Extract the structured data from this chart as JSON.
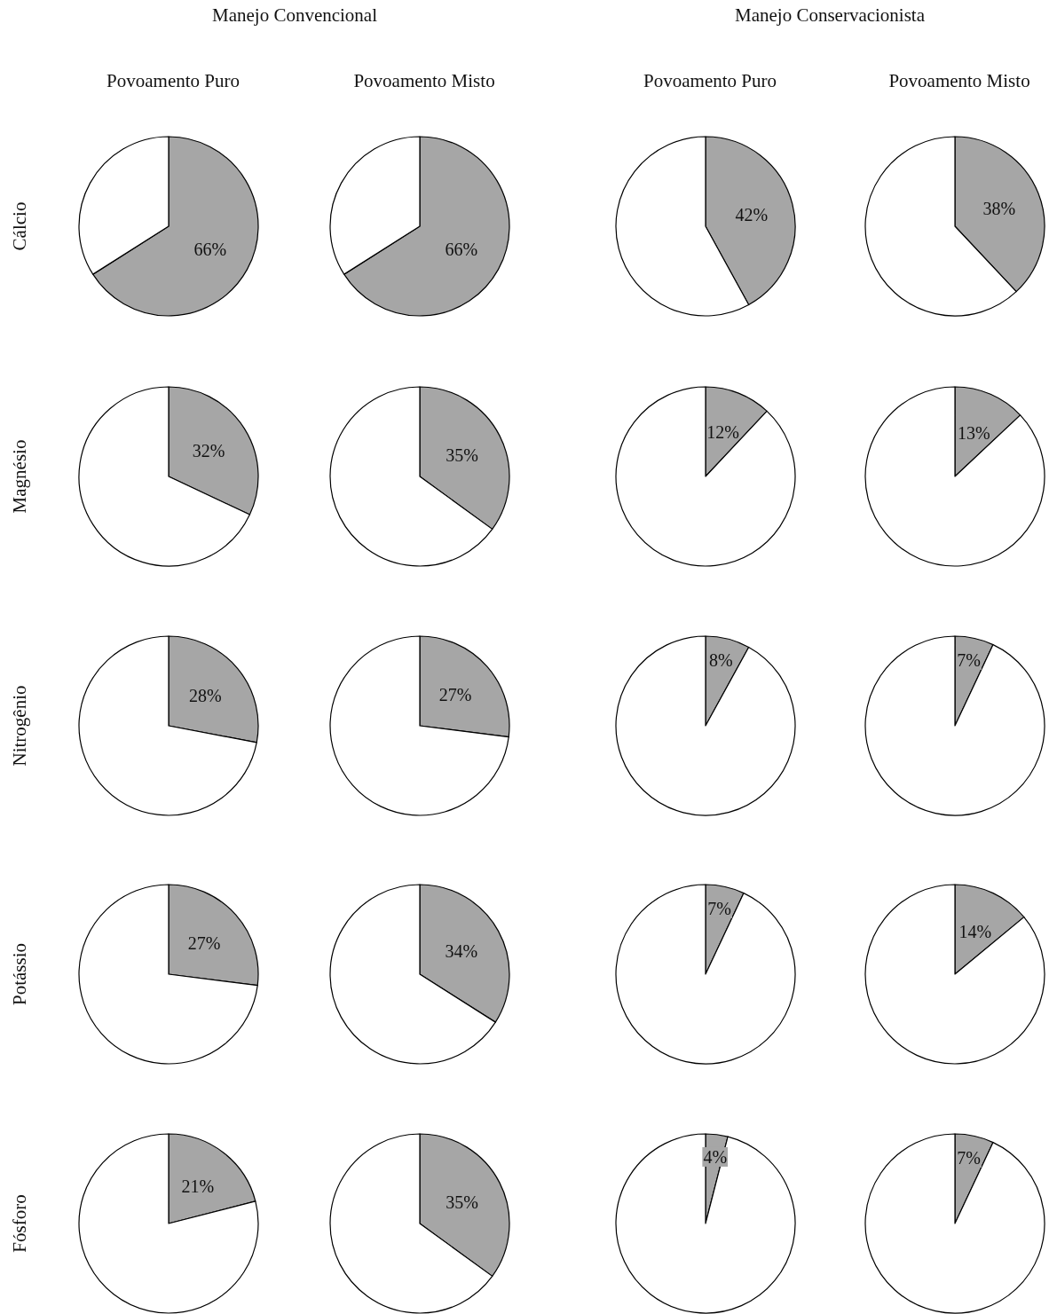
{
  "chart_data": [
    {
      "type": "other",
      "annotations": [
        "Manejo Convencional",
        "Manejo Conservacionista"
      ]
    },
    {
      "type": "pie",
      "title": "Povoamento Puro",
      "ylabel": "Cálcio",
      "categories": [
        null,
        null
      ],
      "values": [
        66,
        34
      ],
      "colors": [
        "#a6a6a6",
        "#ffffff"
      ],
      "value_labels": [
        "66%",
        null
      ]
    },
    {
      "type": "pie",
      "title": "Povoamento Misto",
      "categories": [
        null,
        null
      ],
      "values": [
        66,
        34
      ],
      "colors": [
        "#a6a6a6",
        "#ffffff"
      ],
      "value_labels": [
        "66%",
        null
      ]
    },
    {
      "type": "pie",
      "title": "Povoamento Puro",
      "categories": [
        null,
        null
      ],
      "values": [
        42,
        58
      ],
      "colors": [
        "#a6a6a6",
        "#ffffff"
      ],
      "value_labels": [
        "42%",
        null
      ]
    },
    {
      "type": "pie",
      "title": "Povoamento Misto",
      "categories": [
        null,
        null
      ],
      "values": [
        38,
        62
      ],
      "colors": [
        "#a6a6a6",
        "#ffffff"
      ],
      "value_labels": [
        "38%",
        null
      ]
    },
    {
      "type": "pie",
      "ylabel": "Magnésio",
      "categories": [
        null,
        null
      ],
      "values": [
        32,
        68
      ],
      "colors": [
        "#a6a6a6",
        "#ffffff"
      ],
      "value_labels": [
        "32%",
        null
      ]
    },
    {
      "type": "pie",
      "categories": [
        null,
        null
      ],
      "values": [
        35,
        65
      ],
      "colors": [
        "#a6a6a6",
        "#ffffff"
      ],
      "value_labels": [
        "35%",
        null
      ]
    },
    {
      "type": "pie",
      "categories": [
        null,
        null
      ],
      "values": [
        12,
        88
      ],
      "colors": [
        "#a6a6a6",
        "#ffffff"
      ],
      "value_labels": [
        "12%",
        null
      ]
    },
    {
      "type": "pie",
      "categories": [
        null,
        null
      ],
      "values": [
        13,
        87
      ],
      "colors": [
        "#a6a6a6",
        "#ffffff"
      ],
      "value_labels": [
        "13%",
        null
      ]
    },
    {
      "type": "pie",
      "ylabel": "Nitrogênio",
      "categories": [
        null,
        null
      ],
      "values": [
        28,
        72
      ],
      "colors": [
        "#a6a6a6",
        "#ffffff"
      ],
      "value_labels": [
        "28%",
        null
      ]
    },
    {
      "type": "pie",
      "categories": [
        null,
        null
      ],
      "values": [
        27,
        73
      ],
      "colors": [
        "#a6a6a6",
        "#ffffff"
      ],
      "value_labels": [
        "27%",
        null
      ]
    },
    {
      "type": "pie",
      "categories": [
        null,
        null
      ],
      "values": [
        8,
        92
      ],
      "colors": [
        "#a6a6a6",
        "#ffffff"
      ],
      "value_labels": [
        "8%",
        null
      ]
    },
    {
      "type": "pie",
      "categories": [
        null,
        null
      ],
      "values": [
        7,
        93
      ],
      "colors": [
        "#a6a6a6",
        "#ffffff"
      ],
      "value_labels": [
        "7%",
        null
      ]
    },
    {
      "type": "pie",
      "ylabel": "Potássio",
      "categories": [
        null,
        null
      ],
      "values": [
        27,
        73
      ],
      "colors": [
        "#a6a6a6",
        "#ffffff"
      ],
      "value_labels": [
        "27%",
        null
      ]
    },
    {
      "type": "pie",
      "categories": [
        null,
        null
      ],
      "values": [
        34,
        66
      ],
      "colors": [
        "#a6a6a6",
        "#ffffff"
      ],
      "value_labels": [
        "34%",
        null
      ]
    },
    {
      "type": "pie",
      "categories": [
        null,
        null
      ],
      "values": [
        7,
        93
      ],
      "colors": [
        "#a6a6a6",
        "#ffffff"
      ],
      "value_labels": [
        "7%",
        null
      ]
    },
    {
      "type": "pie",
      "categories": [
        null,
        null
      ],
      "values": [
        14,
        86
      ],
      "colors": [
        "#a6a6a6",
        "#ffffff"
      ],
      "value_labels": [
        "14%",
        null
      ]
    },
    {
      "type": "pie",
      "ylabel": "Fósforo",
      "categories": [
        null,
        null
      ],
      "values": [
        21,
        79
      ],
      "colors": [
        "#a6a6a6",
        "#ffffff"
      ],
      "value_labels": [
        "21%",
        null
      ]
    },
    {
      "type": "pie",
      "categories": [
        null,
        null
      ],
      "values": [
        35,
        65
      ],
      "colors": [
        "#a6a6a6",
        "#ffffff"
      ],
      "value_labels": [
        "35%",
        null
      ]
    },
    {
      "type": "pie",
      "categories": [
        null,
        null
      ],
      "values": [
        4,
        96
      ],
      "colors": [
        "#a6a6a6",
        "#ffffff"
      ],
      "value_labels": [
        "4%",
        null
      ]
    },
    {
      "type": "pie",
      "categories": [
        null,
        null
      ],
      "values": [
        7,
        93
      ],
      "colors": [
        "#a6a6a6",
        "#ffffff"
      ],
      "value_labels": [
        "7%",
        null
      ]
    }
  ]
}
